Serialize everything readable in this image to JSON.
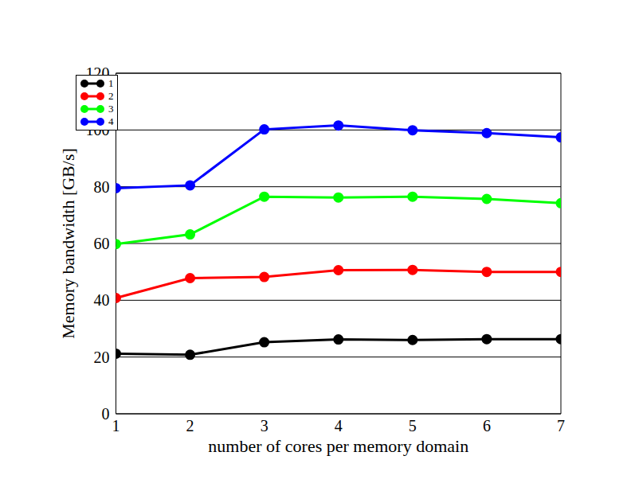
{
  "chart_data": {
    "type": "line",
    "x_label": "number of cores per memory domain",
    "y_label": "Memory bandwidth [GB/s]",
    "x": [
      1,
      2,
      3,
      4,
      5,
      6,
      7
    ],
    "xlim": [
      1,
      7
    ],
    "xticks": [
      1,
      2,
      3,
      4,
      5,
      6,
      7
    ],
    "ylim": [
      0,
      120
    ],
    "yticks": [
      0,
      20,
      40,
      60,
      80,
      100,
      120
    ],
    "grid": true,
    "legend": "upper left",
    "marker": "circle",
    "series": [
      {
        "name": "1",
        "color": "#000000",
        "values": [
          21.2,
          20.8,
          25.2,
          26.2,
          26.0,
          26.3,
          26.3
        ]
      },
      {
        "name": "2",
        "color": "#ff0000",
        "values": [
          40.8,
          47.8,
          48.2,
          50.6,
          50.7,
          50.0,
          50.0
        ]
      },
      {
        "name": "3",
        "color": "#00ff00",
        "values": [
          59.8,
          63.2,
          76.5,
          76.2,
          76.5,
          75.7,
          74.2
        ]
      },
      {
        "name": "4",
        "color": "#0000ff",
        "values": [
          79.5,
          80.5,
          100.2,
          101.6,
          99.9,
          98.9,
          97.4
        ]
      }
    ]
  }
}
